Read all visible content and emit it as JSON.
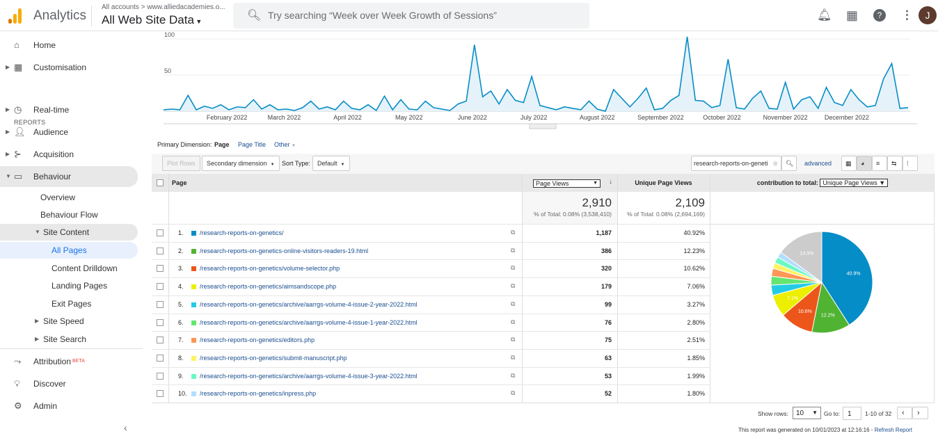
{
  "header": {
    "app_title": "Analytics",
    "breadcrumb": "All accounts > www.alliedacademies.o...",
    "view": "All Web Site Data",
    "search_placeholder": "Try searching “Week over Week Growth of Sessions”",
    "avatar_letter": "J"
  },
  "sidebar": {
    "items": [
      {
        "label": "Home",
        "icon": "home-icon"
      },
      {
        "label": "Customisation",
        "icon": "dashboard-icon"
      }
    ],
    "reports_label": "REPORTS",
    "reports": [
      {
        "label": "Real-time",
        "icon": "clock-icon"
      },
      {
        "label": "Audience",
        "icon": "person-icon"
      },
      {
        "label": "Acquisition",
        "icon": "acquisition-icon"
      },
      {
        "label": "Behaviour",
        "icon": "behaviour-icon"
      }
    ],
    "behaviour_children": [
      "Overview",
      "Behaviour Flow",
      "Site Content"
    ],
    "site_content_children": [
      "All Pages",
      "Content Drilldown",
      "Landing Pages",
      "Exit Pages"
    ],
    "more_children": [
      "Site Speed",
      "Site Search"
    ],
    "bottom": [
      {
        "label": "Attribution",
        "badge": "BETA",
        "icon": "attribution-icon"
      },
      {
        "label": "Discover",
        "icon": "lightbulb-icon"
      },
      {
        "label": "Admin",
        "icon": "gear-icon"
      }
    ]
  },
  "chart_data": {
    "type": "area",
    "ylim": [
      0,
      100
    ],
    "yticks": [
      "50",
      "100"
    ],
    "grid": true,
    "month_labels": [
      "February 2022",
      "March 2022",
      "April 2022",
      "May 2022",
      "June 2022",
      "July 2022",
      "August 2022",
      "September 2022",
      "October 2022",
      "November 2022",
      "December 2022"
    ],
    "color": "#058dc7",
    "x": [
      "2022-01-01",
      "2022-01-05",
      "2022-01-09",
      "2022-01-13",
      "2022-01-17",
      "2022-01-21",
      "2022-01-25",
      "2022-01-29",
      "2022-02-02",
      "2022-02-06",
      "2022-02-10",
      "2022-02-14",
      "2022-02-18",
      "2022-02-22",
      "2022-02-26",
      "2022-03-02",
      "2022-03-06",
      "2022-03-10",
      "2022-03-14",
      "2022-03-18",
      "2022-03-22",
      "2022-03-26",
      "2022-03-30",
      "2022-04-03",
      "2022-04-07",
      "2022-04-11",
      "2022-04-15",
      "2022-04-19",
      "2022-04-23",
      "2022-04-27",
      "2022-05-01",
      "2022-05-05",
      "2022-05-09",
      "2022-05-13",
      "2022-05-17",
      "2022-05-21",
      "2022-05-25",
      "2022-05-29",
      "2022-06-02",
      "2022-06-06",
      "2022-06-10",
      "2022-06-14",
      "2022-06-18",
      "2022-06-22",
      "2022-06-26",
      "2022-06-30",
      "2022-07-04",
      "2022-07-08",
      "2022-07-12",
      "2022-07-16",
      "2022-07-20",
      "2022-07-24",
      "2022-07-28",
      "2022-08-01",
      "2022-08-05",
      "2022-08-09",
      "2022-08-13",
      "2022-08-17",
      "2022-08-21",
      "2022-08-25",
      "2022-08-29",
      "2022-09-02",
      "2022-09-06",
      "2022-09-10",
      "2022-09-14",
      "2022-09-18",
      "2022-09-22",
      "2022-09-26",
      "2022-09-30",
      "2022-10-04",
      "2022-10-08",
      "2022-10-12",
      "2022-10-16",
      "2022-10-20",
      "2022-10-24",
      "2022-10-28",
      "2022-11-01",
      "2022-11-05",
      "2022-11-09",
      "2022-11-13",
      "2022-11-17",
      "2022-11-21",
      "2022-11-25",
      "2022-11-29",
      "2022-12-03",
      "2022-12-07",
      "2022-12-11",
      "2022-12-15",
      "2022-12-19",
      "2022-12-23",
      "2022-12-27",
      "2022-12-31"
    ],
    "values": [
      2,
      3,
      2,
      22,
      2,
      7,
      4,
      9,
      2,
      6,
      5,
      16,
      3,
      9,
      2,
      3,
      1,
      5,
      14,
      3,
      6,
      2,
      14,
      4,
      2,
      9,
      1,
      21,
      2,
      16,
      3,
      2,
      14,
      5,
      3,
      1,
      10,
      14,
      92,
      20,
      28,
      10,
      30,
      15,
      12,
      48,
      8,
      5,
      2,
      6,
      4,
      2,
      14,
      3,
      0,
      30,
      18,
      6,
      18,
      32,
      2,
      4,
      15,
      22,
      103,
      15,
      14,
      5,
      8,
      72,
      5,
      3,
      18,
      28,
      4,
      3,
      40,
      3,
      16,
      20,
      4,
      33,
      12,
      8,
      30,
      16,
      6,
      8,
      45,
      66,
      4,
      5
    ]
  },
  "dimension": {
    "label": "Primary Dimension:",
    "options": [
      "Page",
      "Page Title",
      "Other"
    ]
  },
  "toolbar": {
    "plot_rows": "Plot Rows",
    "secondary": "Secondary dimension",
    "sort_label": "Sort Type:",
    "sort_value": "Default",
    "filter_value": "research-reports-on-geneti",
    "advanced": "advanced"
  },
  "table": {
    "col_page": "Page",
    "col_pv": "Page Views",
    "col_upv": "Unique Page Views",
    "contrib_label": "contribution to total:",
    "contrib_value": "Unique Page Views",
    "totals": {
      "pv": "2,910",
      "pv_pct": "% of Total: 0.08% (3,538,410)",
      "upv": "2,109",
      "upv_pct": "% of Total: 0.08% (2,694,169)"
    },
    "rows": [
      {
        "n": "1.",
        "page": "/research-reports-on-genetics/",
        "pv": "1,187",
        "upv": "40.92%",
        "color": "#058dc7"
      },
      {
        "n": "2.",
        "page": "/research-reports-on-genetics-online-visitors-readers-19.html",
        "pv": "386",
        "upv": "12.23%",
        "color": "#50b432"
      },
      {
        "n": "3.",
        "page": "/research-reports-on-genetics/volume-selector.php",
        "pv": "320",
        "upv": "10.62%",
        "color": "#ed561b"
      },
      {
        "n": "4.",
        "page": "/research-reports-on-genetics/aimsandscope.php",
        "pv": "179",
        "upv": "7.06%",
        "color": "#edef00"
      },
      {
        "n": "5.",
        "page": "/research-reports-on-genetics/archive/aarrgs-volume-4-issue-2-year-2022.html",
        "pv": "99",
        "upv": "3.27%",
        "color": "#24cbe5"
      },
      {
        "n": "6.",
        "page": "/research-reports-on-genetics/archive/aarrgs-volume-4-issue-1-year-2022.html",
        "pv": "76",
        "upv": "2.80%",
        "color": "#64e572"
      },
      {
        "n": "7.",
        "page": "/research-reports-on-genetics/editors.php",
        "pv": "75",
        "upv": "2.51%",
        "color": "#ff9655"
      },
      {
        "n": "8.",
        "page": "/research-reports-on-genetics/submit-manuscript.php",
        "pv": "63",
        "upv": "1.85%",
        "color": "#fff263"
      },
      {
        "n": "9.",
        "page": "/research-reports-on-genetics/archive/aarrgs-volume-4-issue-3-year-2022.html",
        "pv": "53",
        "upv": "1.99%",
        "color": "#6af9c4"
      },
      {
        "n": "10.",
        "page": "/research-reports-on-genetics/inpress.php",
        "pv": "52",
        "upv": "1.80%",
        "color": "#b2deff"
      }
    ]
  },
  "pie": {
    "values": [
      40.92,
      12.23,
      10.62,
      7.06,
      3.27,
      2.8,
      2.51,
      1.85,
      1.99,
      1.8,
      14.95
    ],
    "colors": [
      "#058dc7",
      "#50b432",
      "#ed561b",
      "#edef00",
      "#24cbe5",
      "#64e572",
      "#ff9655",
      "#fff263",
      "#6af9c4",
      "#b2deff",
      "#cccccc"
    ],
    "labels": [
      "40.9%",
      "12.2%",
      "10.6%",
      "7.1%",
      "",
      "",
      "",
      "",
      "",
      "",
      "14.9%"
    ]
  },
  "footer": {
    "show_rows_label": "Show rows:",
    "show_rows": "10",
    "goto_label": "Go to:",
    "goto": "1",
    "range": "1-10 of 32",
    "generated": "This report was generated on 10/01/2023 at 12:16:16 - ",
    "refresh": "Refresh Report"
  }
}
